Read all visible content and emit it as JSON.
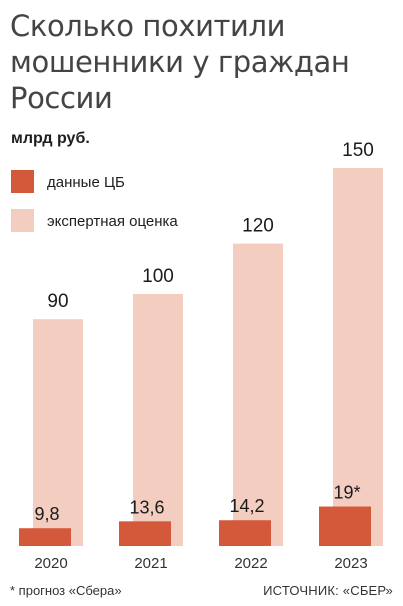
{
  "chart_data": {
    "type": "bar",
    "title": "Сколько похитили мошенники у граждан России",
    "unit": "млрд руб.",
    "categories": [
      "2020",
      "2021",
      "2022",
      "2023"
    ],
    "series": [
      {
        "name": "данные ЦБ",
        "color": "#d4583a",
        "values": [
          9.8,
          13.6,
          14.2,
          19
        ],
        "labels": [
          "9,8",
          "13,6",
          "14,2",
          "19*"
        ]
      },
      {
        "name": "экспертная оценка",
        "color": "#f3cdbf",
        "values": [
          90,
          100,
          120,
          150
        ],
        "labels": [
          "90",
          "100",
          "120",
          "150"
        ]
      }
    ],
    "ylim": [
      0,
      150
    ],
    "grid": false,
    "legend": "top-left",
    "footnote": "* прогноз «Сбера»",
    "source": "ИСТОЧНИК: «СБЕР»"
  }
}
